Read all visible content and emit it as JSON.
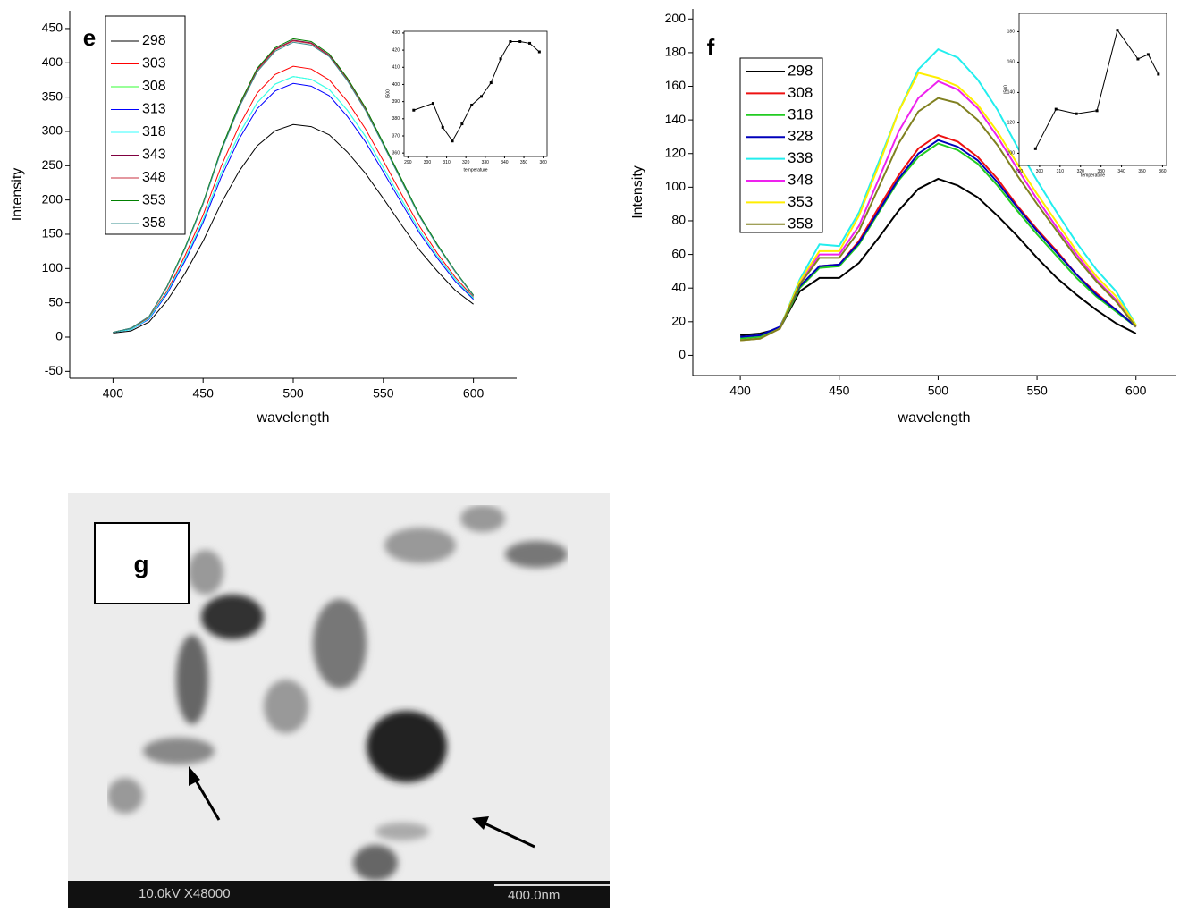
{
  "chart_data": [
    {
      "type": "line",
      "label": "e",
      "x_label": "wavelength",
      "y_label": "Intensity",
      "x": [
        400,
        410,
        420,
        430,
        440,
        450,
        460,
        470,
        480,
        490,
        500,
        510,
        520,
        530,
        540,
        550,
        560,
        570,
        580,
        590,
        600
      ],
      "xlim": [
        376,
        624
      ],
      "xticks": [
        400,
        450,
        500,
        550,
        600
      ],
      "ylim": [
        -60,
        476
      ],
      "yticks": [
        -50,
        0,
        50,
        100,
        150,
        200,
        250,
        300,
        350,
        400,
        450
      ],
      "legend": true,
      "line_width": 1,
      "series": [
        {
          "name": "298",
          "color": "#000000",
          "values": [
            6,
            9,
            22,
            53,
            93,
            140,
            195,
            242,
            279,
            301,
            310,
            307,
            295,
            270,
            239,
            202,
            164,
            127,
            96,
            68,
            48
          ]
        },
        {
          "name": "303",
          "color": "#ff0000",
          "values": [
            7,
            12,
            28,
            67,
            119,
            178,
            249,
            308,
            356,
            383,
            395,
            391,
            375,
            344,
            304,
            257,
            209,
            162,
            122,
            87,
            58
          ]
        },
        {
          "name": "308",
          "color": "#33ff33",
          "values": [
            7,
            11,
            27,
            65,
            114,
            171,
            239,
            296,
            342,
            369,
            380,
            376,
            361,
            331,
            293,
            247,
            201,
            156,
            118,
            84,
            56
          ]
        },
        {
          "name": "313",
          "color": "#0000ff",
          "values": [
            7,
            11,
            26,
            63,
            111,
            167,
            233,
            289,
            333,
            359,
            370,
            366,
            352,
            322,
            285,
            241,
            196,
            152,
            115,
            81,
            55
          ]
        },
        {
          "name": "318",
          "color": "#33ffff",
          "values": [
            7,
            11,
            27,
            65,
            114,
            171,
            239,
            296,
            342,
            369,
            380,
            376,
            361,
            331,
            293,
            247,
            201,
            156,
            118,
            84,
            57
          ]
        },
        {
          "name": "343",
          "color": "#800040",
          "values": [
            7,
            13,
            30,
            74,
            130,
            195,
            273,
            338,
            390,
            420,
            433,
            429,
            411,
            377,
            333,
            281,
            229,
            178,
            134,
            95,
            61
          ]
        },
        {
          "name": "348",
          "color": "#c83040",
          "values": [
            7,
            13,
            30,
            73,
            130,
            194,
            272,
            337,
            389,
            419,
            432,
            428,
            410,
            376,
            333,
            281,
            229,
            177,
            134,
            95,
            60
          ]
        },
        {
          "name": "353",
          "color": "#008000",
          "values": [
            7,
            13,
            30,
            74,
            131,
            196,
            274,
            339,
            392,
            422,
            435,
            431,
            413,
            378,
            335,
            283,
            231,
            178,
            135,
            96,
            61
          ]
        },
        {
          "name": "358",
          "color": "#3a9090",
          "values": [
            7,
            13,
            30,
            73,
            129,
            194,
            271,
            335,
            387,
            417,
            430,
            426,
            409,
            374,
            331,
            280,
            228,
            176,
            133,
            95,
            60
          ]
        }
      ]
    },
    {
      "type": "line",
      "x_label": "temperature",
      "y_label": "I500",
      "markers": true,
      "frame": true,
      "x": [
        293,
        303,
        308,
        313,
        318,
        323,
        328,
        333,
        338,
        343,
        348,
        353,
        358
      ],
      "xlim": [
        288,
        362
      ],
      "xticks": [
        290,
        300,
        310,
        320,
        330,
        340,
        350,
        360
      ],
      "ylim": [
        358,
        431
      ],
      "yticks": [
        360,
        370,
        380,
        390,
        400,
        410,
        420,
        430
      ],
      "series": [
        {
          "color": "#000000",
          "values": [
            385,
            389,
            375,
            367,
            377,
            388,
            393,
            401,
            415,
            425,
            425,
            424,
            419
          ]
        }
      ]
    },
    {
      "type": "line",
      "label": "f",
      "x_label": "wavelength",
      "y_label": "Intensity",
      "x": [
        400,
        410,
        420,
        430,
        440,
        450,
        460,
        470,
        480,
        490,
        500,
        510,
        520,
        530,
        540,
        550,
        560,
        570,
        580,
        590,
        600
      ],
      "xlim": [
        376,
        620
      ],
      "xticks": [
        400,
        450,
        500,
        550,
        600
      ],
      "ylim": [
        -12,
        206
      ],
      "yticks": [
        0,
        20,
        40,
        60,
        80,
        100,
        120,
        140,
        160,
        180,
        200
      ],
      "legend": true,
      "line_width": 2,
      "series": [
        {
          "name": "298",
          "color": "#000000",
          "values": [
            12,
            13,
            16,
            38,
            46,
            46,
            55,
            70,
            86,
            99,
            105,
            101,
            94,
            83,
            71,
            58,
            46,
            36,
            27,
            19,
            13
          ]
        },
        {
          "name": "308",
          "color": "#ee1111",
          "values": [
            9,
            11,
            16,
            40,
            53,
            54,
            68,
            88,
            107,
            123,
            131,
            127,
            118,
            105,
            89,
            75,
            62,
            48,
            37,
            27,
            17
          ]
        },
        {
          "name": "318",
          "color": "#22cc22",
          "values": [
            10,
            11,
            16,
            40,
            52,
            53,
            66,
            85,
            104,
            118,
            126,
            122,
            114,
            101,
            86,
            72,
            59,
            46,
            35,
            26,
            17
          ]
        },
        {
          "name": "328",
          "color": "#0000bb",
          "values": [
            11,
            12,
            17,
            41,
            53,
            54,
            67,
            86,
            105,
            120,
            128,
            124,
            116,
            103,
            88,
            74,
            61,
            48,
            36,
            27,
            17
          ]
        },
        {
          "name": "338",
          "color": "#22eeee",
          "values": [
            9,
            10,
            16,
            45,
            66,
            65,
            85,
            115,
            145,
            170,
            182,
            177,
            164,
            146,
            124,
            104,
            85,
            67,
            51,
            38,
            18
          ]
        },
        {
          "name": "348",
          "color": "#ee22ee",
          "values": [
            9,
            10,
            16,
            43,
            60,
            60,
            77,
            105,
            133,
            153,
            163,
            158,
            147,
            130,
            111,
            93,
            76,
            60,
            45,
            33,
            17
          ]
        },
        {
          "name": "353",
          "color": "#ffee00",
          "values": [
            9,
            10,
            16,
            44,
            62,
            62,
            83,
            113,
            145,
            168,
            165,
            160,
            149,
            133,
            114,
            96,
            79,
            62,
            47,
            35,
            18
          ]
        },
        {
          "name": "358",
          "color": "#808020",
          "values": [
            9,
            10,
            16,
            42,
            58,
            58,
            74,
            100,
            126,
            145,
            153,
            150,
            140,
            125,
            107,
            90,
            74,
            58,
            44,
            32,
            17
          ]
        }
      ]
    },
    {
      "type": "line",
      "x_label": "temperature",
      "y_label": "I500",
      "markers": true,
      "frame": true,
      "x": [
        298,
        308,
        318,
        328,
        338,
        348,
        353,
        358
      ],
      "xlim": [
        290,
        362
      ],
      "xticks": [
        290,
        300,
        310,
        320,
        330,
        340,
        350,
        360
      ],
      "ylim": [
        92,
        192
      ],
      "yticks": [
        100,
        120,
        140,
        160,
        180
      ],
      "series": [
        {
          "color": "#000000",
          "values": [
            103,
            129,
            126,
            128,
            181,
            162,
            165,
            152
          ]
        }
      ]
    }
  ],
  "panel_g": {
    "label": "g",
    "footer_left": "10.0kV X48000",
    "footer_right": "400.0nm"
  }
}
